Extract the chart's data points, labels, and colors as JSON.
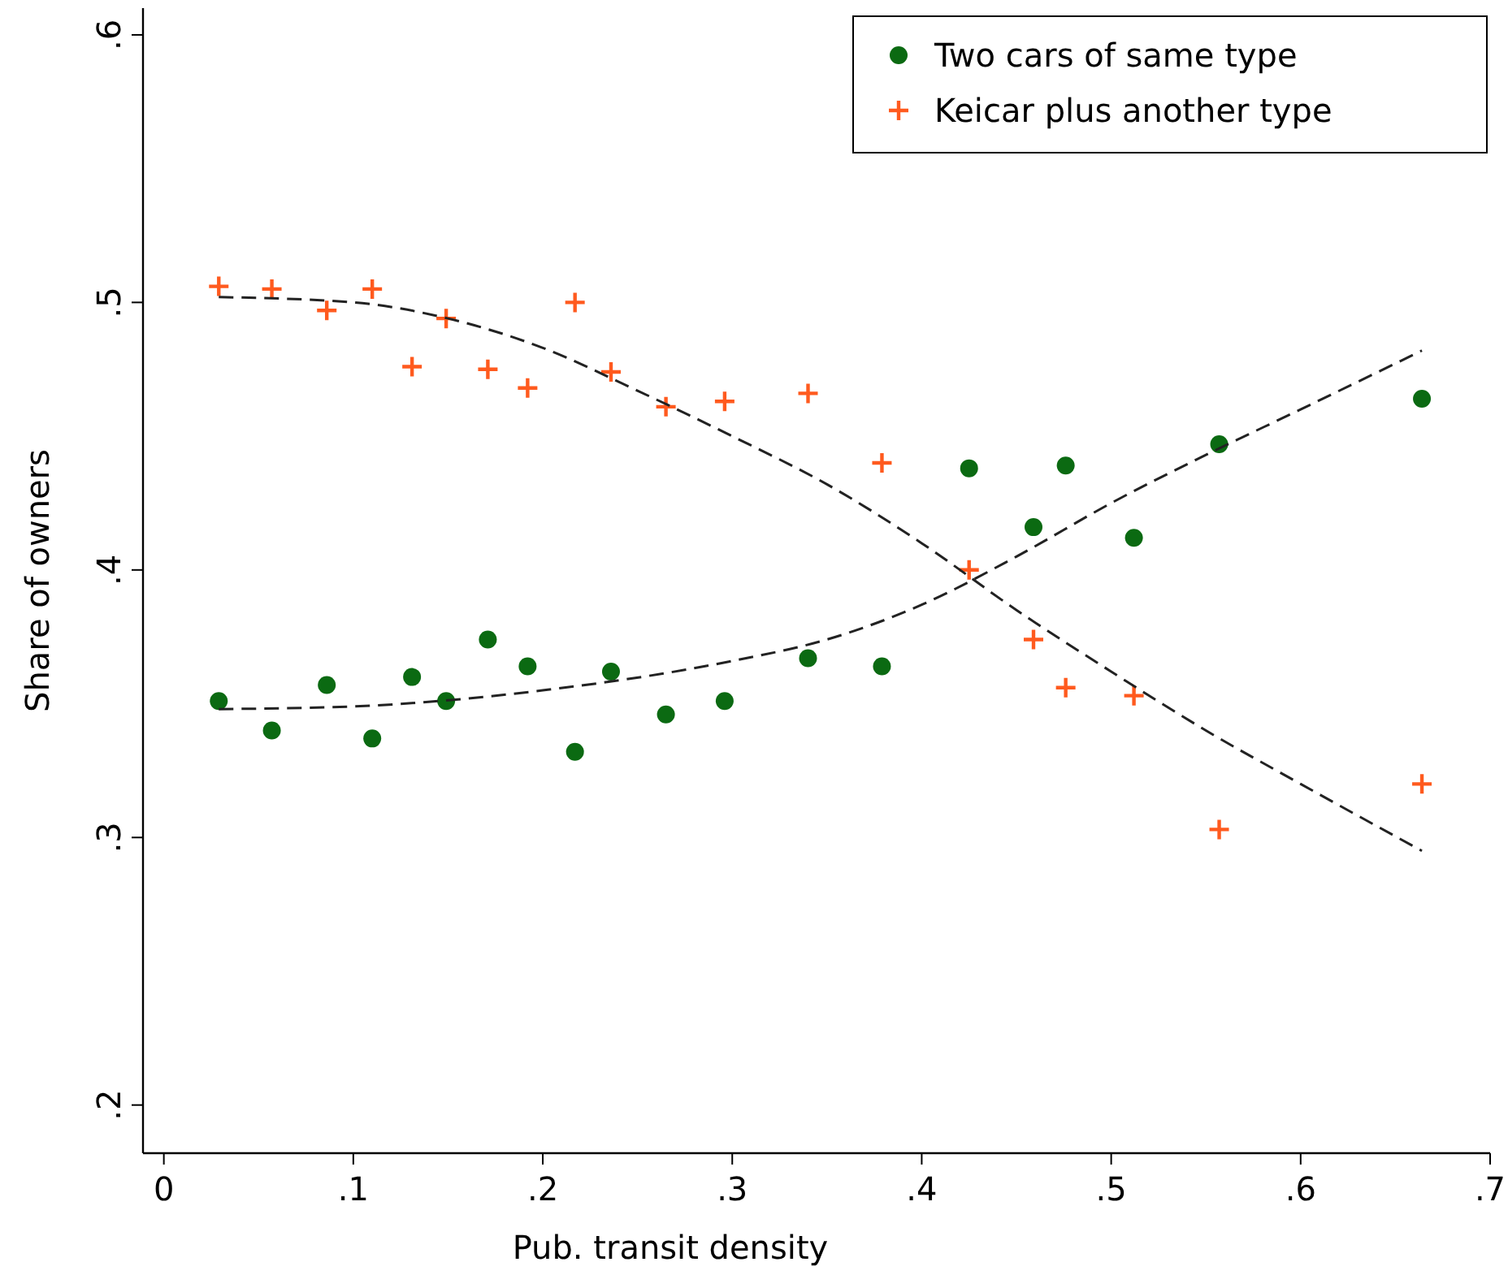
{
  "chart_data": {
    "type": "scatter",
    "xlabel": "Pub. transit density",
    "ylabel": "Share of owners",
    "xlim": [
      -0.011,
      0.7
    ],
    "xticks": [
      {
        "value": 0,
        "label": "0"
      },
      {
        "value": 0.1,
        "label": ".1"
      },
      {
        "value": 0.2,
        "label": ".2"
      },
      {
        "value": 0.3,
        "label": ".3"
      },
      {
        "value": 0.4,
        "label": ".4"
      },
      {
        "value": 0.5,
        "label": ".5"
      },
      {
        "value": 0.6,
        "label": ".6"
      },
      {
        "value": 0.7,
        "label": ".7"
      }
    ],
    "ylim": [
      0.182,
      0.61
    ],
    "yticks": [
      {
        "value": 0.2,
        "label": ".2"
      },
      {
        "value": 0.3,
        "label": ".3"
      },
      {
        "value": 0.4,
        "label": ".4"
      },
      {
        "value": 0.5,
        "label": ".5"
      },
      {
        "value": 0.6,
        "label": ".6"
      }
    ],
    "grid": false,
    "legend": "top right",
    "x": [
      0.029,
      0.057,
      0.086,
      0.11,
      0.131,
      0.149,
      0.171,
      0.192,
      0.217,
      0.236,
      0.265,
      0.296,
      0.34,
      0.379,
      0.425,
      0.459,
      0.476,
      0.512,
      0.557,
      0.664
    ],
    "series": [
      {
        "name": "Two cars of same type",
        "color": "#0b6a12",
        "marker": "circle",
        "values": [
          0.351,
          0.34,
          0.357,
          0.337,
          0.36,
          0.351,
          0.374,
          0.364,
          0.332,
          0.362,
          0.346,
          0.351,
          0.367,
          0.364,
          0.438,
          0.416,
          0.439,
          0.412,
          0.447,
          0.464
        ]
      },
      {
        "name": "Keicar plus another type",
        "color": "#ff5a1e",
        "marker": "cross",
        "values": [
          0.506,
          0.505,
          0.497,
          0.505,
          0.476,
          0.494,
          0.475,
          0.468,
          0.5,
          0.474,
          0.461,
          0.463,
          0.466,
          0.44,
          0.4,
          0.374,
          0.356,
          0.353,
          0.303,
          0.32
        ]
      },
      {
        "type": "line",
        "color": "#222222",
        "line_style": "dashed",
        "marker": "none",
        "x": [
          0.029,
          0.1,
          0.2,
          0.3,
          0.35,
          0.4,
          0.45,
          0.5,
          0.55,
          0.6,
          0.664
        ],
        "values": [
          0.348,
          0.349,
          0.355,
          0.366,
          0.374,
          0.387,
          0.405,
          0.425,
          0.443,
          0.46,
          0.482
        ]
      },
      {
        "type": "line",
        "color": "#222222",
        "line_style": "dashed",
        "marker": "none",
        "x": [
          0.029,
          0.1,
          0.15,
          0.2,
          0.25,
          0.3,
          0.35,
          0.4,
          0.45,
          0.5,
          0.55,
          0.6,
          0.664
        ],
        "values": [
          0.502,
          0.5,
          0.494,
          0.483,
          0.467,
          0.45,
          0.432,
          0.41,
          0.385,
          0.362,
          0.34,
          0.32,
          0.295
        ]
      }
    ]
  }
}
